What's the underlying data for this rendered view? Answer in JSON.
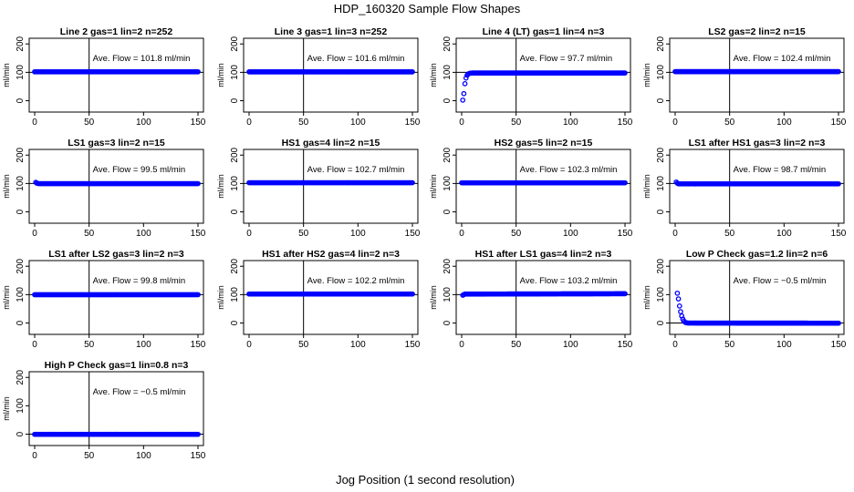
{
  "figure": {
    "title": "HDP_160320  Sample Flow Shapes",
    "xlabel": "Jog Position (1 second resolution)",
    "ylabel": "ml/min",
    "x_ticks": [
      "0",
      "50",
      "100",
      "150"
    ],
    "y_ticks": [
      "0",
      "100",
      "200"
    ],
    "avg_template": "Ave. Flow = {v}  ml/min",
    "point_color": "#0000ff"
  },
  "chart_data": [
    {
      "type": "scatter",
      "title": "Line 2 gas=1 lin=2 n=252",
      "avg": "101.8",
      "xlim": [
        0,
        150
      ],
      "ylim": [
        -40,
        220
      ],
      "reference_lines": {
        "x": 50,
        "y": 100
      },
      "series": [
        {
          "x": [
            0,
            150
          ],
          "y": [
            101.8,
            101.8
          ]
        }
      ]
    },
    {
      "type": "scatter",
      "title": "Line 3 gas=1 lin=3 n=252",
      "avg": "101.6",
      "xlim": [
        0,
        150
      ],
      "ylim": [
        -40,
        220
      ],
      "reference_lines": {
        "x": 50,
        "y": 100
      },
      "series": [
        {
          "x": [
            0,
            150
          ],
          "y": [
            101.6,
            101.6
          ]
        }
      ]
    },
    {
      "type": "scatter",
      "title": "Line 4 (LT) gas=1 lin=4 n=3",
      "avg": "97.7",
      "xlim": [
        0,
        150
      ],
      "ylim": [
        -40,
        220
      ],
      "reference_lines": {
        "x": 50,
        "y": 100
      },
      "series": [
        {
          "x": [
            1,
            2,
            3,
            4,
            5,
            6,
            7,
            8,
            9,
            10,
            150
          ],
          "y": [
            2,
            25,
            60,
            80,
            90,
            94,
            96,
            97,
            97.5,
            97.7,
            97.7
          ]
        }
      ]
    },
    {
      "type": "scatter",
      "title": "LS2 gas=2 lin=2 n=15",
      "avg": "102.4",
      "xlim": [
        0,
        150
      ],
      "ylim": [
        -40,
        220
      ],
      "reference_lines": {
        "x": 50,
        "y": 100
      },
      "series": [
        {
          "x": [
            0,
            150
          ],
          "y": [
            102.4,
            102.4
          ]
        }
      ]
    },
    {
      "type": "scatter",
      "title": "LS1 gas=3 lin=2 n=15",
      "avg": "99.5",
      "xlim": [
        0,
        150
      ],
      "ylim": [
        -40,
        220
      ],
      "reference_lines": {
        "x": 50,
        "y": 100
      },
      "series": [
        {
          "x": [
            1,
            2,
            3,
            4,
            150
          ],
          "y": [
            104,
            101,
            100,
            99.5,
            99.5
          ]
        }
      ]
    },
    {
      "type": "scatter",
      "title": "HS1 gas=4 lin=2 n=15",
      "avg": "102.7",
      "xlim": [
        0,
        150
      ],
      "ylim": [
        -40,
        220
      ],
      "reference_lines": {
        "x": 50,
        "y": 100
      },
      "series": [
        {
          "x": [
            0,
            150
          ],
          "y": [
            102.7,
            102.7
          ]
        }
      ]
    },
    {
      "type": "scatter",
      "title": "HS2 gas=5 lin=2 n=15",
      "avg": "102.3",
      "xlim": [
        0,
        150
      ],
      "ylim": [
        -40,
        220
      ],
      "reference_lines": {
        "x": 50,
        "y": 100
      },
      "series": [
        {
          "x": [
            0,
            150
          ],
          "y": [
            102.3,
            102.3
          ]
        }
      ]
    },
    {
      "type": "scatter",
      "title": "LS1 after HS1 gas=3 lin=2 n=3",
      "avg": "98.7",
      "xlim": [
        0,
        150
      ],
      "ylim": [
        -40,
        220
      ],
      "reference_lines": {
        "x": 50,
        "y": 100
      },
      "series": [
        {
          "x": [
            1,
            2,
            3,
            4,
            150
          ],
          "y": [
            105,
            101,
            99,
            98.7,
            98.7
          ]
        }
      ]
    },
    {
      "type": "scatter",
      "title": "LS1 after LS2 gas=3 lin=2 n=3",
      "avg": "99.8",
      "xlim": [
        0,
        150
      ],
      "ylim": [
        -40,
        220
      ],
      "reference_lines": {
        "x": 50,
        "y": 100
      },
      "series": [
        {
          "x": [
            0,
            150
          ],
          "y": [
            99.8,
            99.8
          ]
        }
      ]
    },
    {
      "type": "scatter",
      "title": "HS1 after HS2 gas=4 lin=2 n=3",
      "avg": "102.2",
      "xlim": [
        0,
        150
      ],
      "ylim": [
        -40,
        220
      ],
      "reference_lines": {
        "x": 50,
        "y": 100
      },
      "series": [
        {
          "x": [
            0,
            150
          ],
          "y": [
            102.2,
            102.2
          ]
        }
      ]
    },
    {
      "type": "scatter",
      "title": "HS1 after LS1 gas=4 lin=2 n=3",
      "avg": "103.2",
      "xlim": [
        0,
        150
      ],
      "ylim": [
        -40,
        220
      ],
      "reference_lines": {
        "x": 50,
        "y": 100
      },
      "series": [
        {
          "x": [
            1,
            2,
            3,
            150
          ],
          "y": [
            98,
            100,
            102,
            103.2
          ]
        }
      ]
    },
    {
      "type": "scatter",
      "title": "Low P Check gas=1.2 lin=2 n=6",
      "avg": "−0.5",
      "xlim": [
        0,
        150
      ],
      "ylim": [
        -40,
        220
      ],
      "reference_lines": {
        "x": 50,
        "y": 0
      },
      "series": [
        {
          "x": [
            2,
            3,
            4,
            5,
            6,
            7,
            8,
            9,
            10,
            12,
            150
          ],
          "y": [
            105,
            85,
            60,
            40,
            25,
            14,
            7,
            3,
            1,
            0,
            -0.5
          ]
        }
      ]
    },
    {
      "type": "scatter",
      "title": "High P Check gas=1 lin=0.8 n=3",
      "avg": "−0.5",
      "xlim": [
        0,
        150
      ],
      "ylim": [
        -40,
        220
      ],
      "reference_lines": {
        "x": 50,
        "y": 0
      },
      "series": [
        {
          "x": [
            0,
            150
          ],
          "y": [
            -0.5,
            -0.5
          ]
        }
      ]
    }
  ]
}
